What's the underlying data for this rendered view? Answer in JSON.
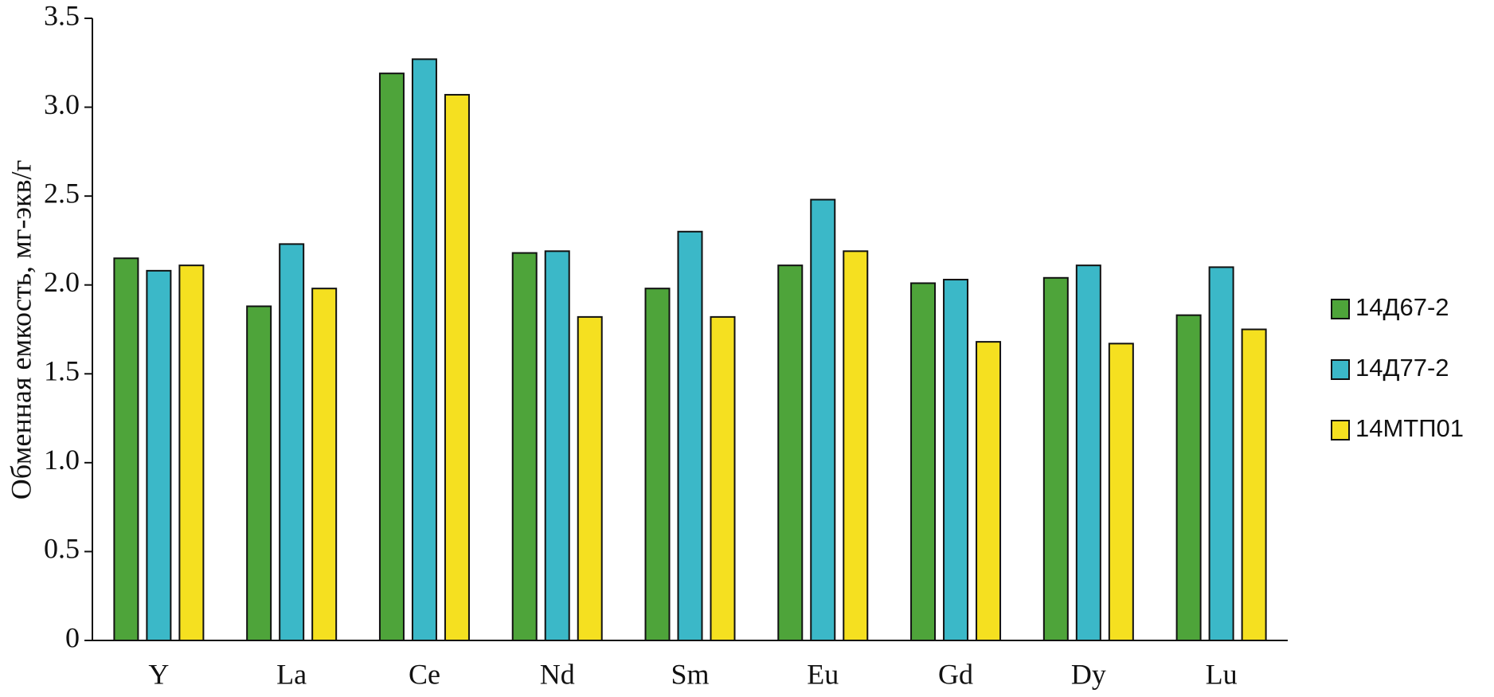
{
  "chart_data": {
    "type": "bar",
    "y_label": "Обменная емкость, мг-экв/г",
    "categories": [
      "Y",
      "La",
      "Ce",
      "Nd",
      "Sm",
      "Eu",
      "Gd",
      "Dy",
      "Lu"
    ],
    "series": [
      {
        "name": "14Д67-2",
        "color": "#4ea43a",
        "values": [
          2.15,
          1.88,
          3.19,
          2.18,
          1.98,
          2.11,
          2.01,
          2.04,
          1.83
        ]
      },
      {
        "name": "14Д77-2",
        "color": "#3bb8c8",
        "values": [
          2.08,
          2.23,
          3.27,
          2.19,
          2.3,
          2.48,
          2.03,
          2.11,
          2.1
        ]
      },
      {
        "name": "14МТП01",
        "color": "#f5e020",
        "values": [
          2.11,
          1.98,
          3.07,
          1.82,
          1.82,
          2.19,
          1.68,
          1.67,
          1.75
        ]
      }
    ],
    "ylim": [
      0,
      3.5
    ],
    "yticks": [
      0,
      0.5,
      {
        "value": 1,
        "label": "1.0"
      },
      1.5,
      {
        "value": 2,
        "label": "2.0"
      },
      2.5,
      {
        "value": 3,
        "label": "3.0"
      },
      3.5
    ],
    "legend": "right"
  }
}
